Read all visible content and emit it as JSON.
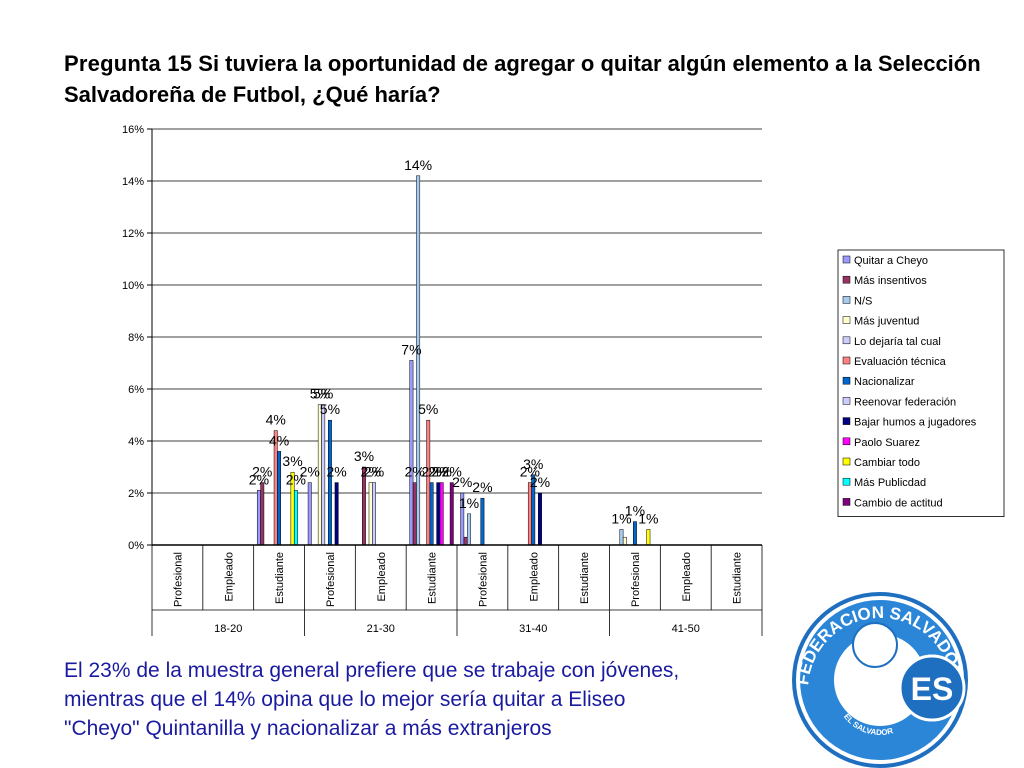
{
  "chart_data": {
    "type": "bar",
    "title": "Pregunta 15",
    "subtitle": "Si tuviera la oportunidad de agregar o quitar algún elemento a la Selección Salvadoreña de Futbol, ¿Qué haría?",
    "categories": [
      "Profesional",
      "Empleado",
      "Estudiante",
      "Profesional",
      "Empleado",
      "Estudiante",
      "Profesional",
      "Empleado",
      "Estudiante",
      "Profesional",
      "Empleado",
      "Estudiante"
    ],
    "groups": [
      "18-20",
      "21-30",
      "31-40",
      "41-50"
    ],
    "ylim": [
      0,
      16
    ],
    "yticks": [
      {
        "value": 0,
        "label": "0%"
      },
      {
        "value": 2,
        "label": "2%"
      },
      {
        "value": 4,
        "label": "4%"
      },
      {
        "value": 6,
        "label": "6%"
      },
      {
        "value": 8,
        "label": "8%"
      },
      {
        "value": 10,
        "label": "10%"
      },
      {
        "value": 12,
        "label": "12%"
      },
      {
        "value": 14,
        "label": "14%"
      },
      {
        "value": 16,
        "label": "16%"
      }
    ],
    "grid": true,
    "legend": "right",
    "series": [
      {
        "name": "Quitar a Cheyo",
        "color": "#9999ff",
        "values": [
          0,
          0,
          2.1,
          2.4,
          0,
          7.1,
          2.0,
          0,
          0,
          0,
          0,
          0
        ],
        "value_labels": [
          null,
          null,
          "2%",
          "2%",
          null,
          "7%",
          "2%",
          null,
          null,
          null,
          null,
          null
        ]
      },
      {
        "name": "Más insentivos",
        "color": "#993366",
        "values": [
          0,
          0,
          2.4,
          0,
          3.0,
          2.4,
          0.3,
          0,
          0,
          0,
          0,
          0
        ],
        "value_labels": [
          null,
          null,
          "2%",
          null,
          "3%",
          "2%",
          null,
          null,
          null,
          null,
          null,
          null
        ]
      },
      {
        "name": "N/S",
        "color": "#a6caf0",
        "values": [
          0,
          0,
          0,
          0,
          0,
          14.2,
          1.2,
          0,
          0,
          0.6,
          0,
          0
        ],
        "value_labels": [
          null,
          null,
          null,
          null,
          null,
          "14%",
          "1%",
          null,
          null,
          "1%",
          null,
          null
        ]
      },
      {
        "name": "Más juventud",
        "color": "#ffffcc",
        "values": [
          0,
          0,
          0,
          5.4,
          2.4,
          0,
          0,
          0,
          0,
          0.3,
          0,
          0
        ],
        "value_labels": [
          null,
          null,
          null,
          "5%",
          "2%",
          null,
          null,
          null,
          null,
          null,
          null,
          null
        ]
      },
      {
        "name": "Lo dejaría tal cual",
        "color": "#ccccff",
        "values": [
          0,
          0,
          0,
          5.4,
          2.4,
          0,
          0,
          0,
          0,
          0,
          0,
          0
        ],
        "value_labels": [
          null,
          null,
          null,
          "5%",
          "2%",
          null,
          null,
          null,
          null,
          null,
          null,
          null
        ]
      },
      {
        "name": "Evaluación técnica",
        "color": "#ff8080",
        "values": [
          0,
          0,
          4.4,
          0,
          0,
          4.8,
          0,
          2.4,
          0,
          0,
          0,
          0
        ],
        "value_labels": [
          null,
          null,
          "4%",
          null,
          null,
          "5%",
          null,
          "2%",
          null,
          null,
          null,
          null
        ]
      },
      {
        "name": "Nacionalizar",
        "color": "#0066cc",
        "values": [
          0,
          0,
          3.6,
          4.8,
          0,
          2.4,
          1.8,
          2.7,
          0,
          0.9,
          0,
          0
        ],
        "value_labels": [
          null,
          null,
          "4%",
          "5%",
          null,
          "2%",
          "2%",
          "3%",
          null,
          "1%",
          null,
          null
        ]
      },
      {
        "name": "Reenovar federación",
        "color": "#ccccff",
        "values": [
          0,
          0,
          0,
          0,
          0,
          0,
          0,
          0,
          0,
          0,
          0,
          0
        ],
        "value_labels": [
          null,
          null,
          null,
          null,
          null,
          null,
          null,
          null,
          null,
          null,
          null,
          null
        ]
      },
      {
        "name": "Bajar humos a jugadores",
        "color": "#000080",
        "values": [
          0,
          0,
          0,
          2.4,
          0,
          2.4,
          0,
          2.0,
          0,
          0,
          0,
          0
        ],
        "value_labels": [
          null,
          null,
          null,
          "2%",
          null,
          "2%",
          null,
          "2%",
          null,
          null,
          null,
          null
        ]
      },
      {
        "name": "Paolo Suarez",
        "color": "#ff00ff",
        "values": [
          0,
          0,
          0,
          0,
          0,
          2.4,
          0,
          0,
          0,
          0,
          0,
          0
        ],
        "value_labels": [
          null,
          null,
          null,
          null,
          null,
          "2%",
          null,
          null,
          null,
          null,
          null,
          null
        ]
      },
      {
        "name": "Cambiar todo",
        "color": "#ffff00",
        "values": [
          0,
          0,
          2.8,
          0,
          0,
          0,
          0,
          0,
          0,
          0.6,
          0,
          0
        ],
        "value_labels": [
          null,
          null,
          "3%",
          null,
          null,
          null,
          null,
          null,
          null,
          "1%",
          null,
          null
        ]
      },
      {
        "name": "Más Publicdad",
        "color": "#00ffff",
        "values": [
          0,
          0,
          2.1,
          0,
          0,
          0,
          0,
          0,
          0,
          0,
          0,
          0
        ],
        "value_labels": [
          null,
          null,
          "2%",
          null,
          null,
          null,
          null,
          null,
          null,
          null,
          null,
          null
        ]
      },
      {
        "name": "Cambio de actitud",
        "color": "#800080",
        "values": [
          0,
          0,
          0,
          0,
          0,
          2.4,
          0,
          0,
          0,
          0,
          0,
          0
        ],
        "value_labels": [
          null,
          null,
          null,
          null,
          null,
          "2%",
          null,
          null,
          null,
          null,
          null,
          null
        ]
      }
    ]
  },
  "body": [
    "El 23% de la muestra general prefiere que se trabaje con jóvenes,",
    "mientras que el 14% opina que lo mejor sería quitar a Eliseo",
    "\"Cheyo\" Quintanilla y nacionalizar a más extranjeros"
  ],
  "logo": {
    "ring": "FEDERACION SALVADOREÑA DE FUTBOL",
    "country": "EL SALVADOR",
    "mark": "ES"
  }
}
